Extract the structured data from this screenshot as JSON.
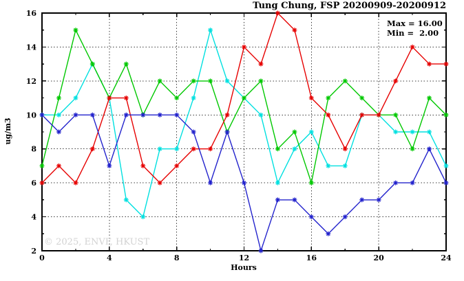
{
  "watermark": "© 2025, ENVF, HKUST",
  "colors": {
    "background": "#ffffff",
    "axis": "#000000",
    "grid": "#3a3a3a",
    "watermark": "#d2d2d2",
    "series_red": "#e60000",
    "series_green": "#00c800",
    "series_cyan": "#00e0e0",
    "series_blue": "#2222cc"
  },
  "chart_data": {
    "type": "line",
    "title": "Tung Chung, FSP 20200909-20200912",
    "xlabel": "Hours",
    "ylabel": "ug/m3",
    "xlim": [
      0,
      24
    ],
    "ylim": [
      2,
      16
    ],
    "grid": true,
    "marker": "asterisk",
    "legend_position": "none",
    "annotations": {
      "max": "Max = 16.00",
      "min": "Min =  2.00"
    },
    "x_major_ticks": [
      0,
      4,
      8,
      12,
      16,
      20,
      24
    ],
    "x_minor_step": 2,
    "y_major_ticks": [
      2,
      4,
      6,
      8,
      10,
      12,
      14,
      16
    ],
    "y_minor_step": 1,
    "x": [
      0,
      1,
      2,
      3,
      4,
      5,
      6,
      7,
      8,
      9,
      10,
      11,
      12,
      13,
      14,
      15,
      16,
      17,
      18,
      19,
      20,
      21,
      22,
      23,
      24
    ],
    "series": [
      {
        "name": "cyan",
        "color": "#00e0e0",
        "values": [
          10,
          10,
          11,
          13,
          11,
          5,
          4,
          8,
          8,
          11,
          15,
          12,
          11,
          10,
          6,
          8,
          9,
          7,
          7,
          10,
          10,
          9,
          9,
          9,
          7
        ]
      },
      {
        "name": "green",
        "color": "#00c800",
        "values": [
          7,
          11,
          15,
          13,
          11,
          13,
          10,
          12,
          11,
          12,
          12,
          9,
          11,
          12,
          8,
          9,
          6,
          11,
          12,
          11,
          10,
          10,
          8,
          11,
          10
        ]
      },
      {
        "name": "red",
        "color": "#e60000",
        "values": [
          6,
          7,
          6,
          8,
          11,
          11,
          7,
          6,
          7,
          8,
          8,
          10,
          14,
          13,
          16,
          15,
          11,
          10,
          8,
          10,
          10,
          12,
          14,
          13,
          13
        ]
      },
      {
        "name": "blue",
        "color": "#2222cc",
        "values": [
          10,
          9,
          10,
          10,
          7,
          10,
          10,
          10,
          10,
          9,
          6,
          9,
          6,
          2,
          5,
          5,
          4,
          3,
          4,
          5,
          5,
          6,
          6,
          8,
          6
        ]
      }
    ]
  }
}
